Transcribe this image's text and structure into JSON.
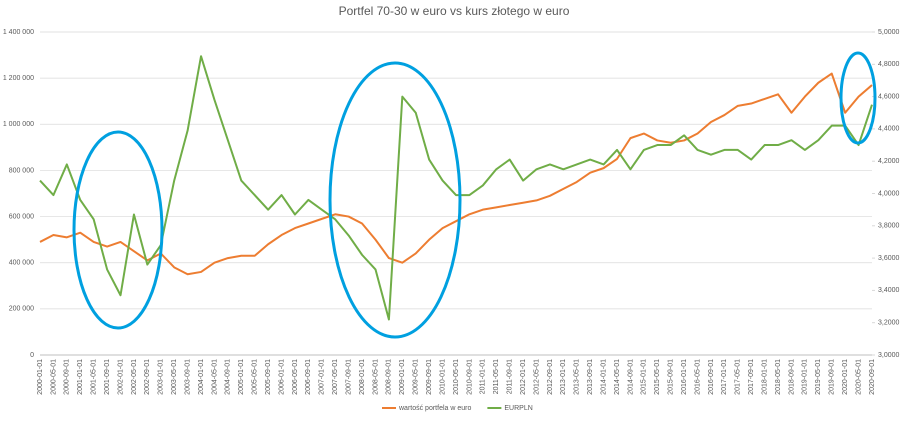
{
  "chart_data": {
    "type": "line",
    "title": "Portfel 70-30 w euro vs kurs złotego w euro",
    "categories": [
      "2000-01-01",
      "2000-05-01",
      "2000-09-01",
      "2001-01-01",
      "2001-05-01",
      "2001-09-01",
      "2002-01-01",
      "2002-05-01",
      "2002-09-01",
      "2003-01-01",
      "2003-05-01",
      "2003-09-01",
      "2004-01-01",
      "2004-05-01",
      "2004-09-01",
      "2005-01-01",
      "2005-05-01",
      "2005-09-01",
      "2006-01-01",
      "2006-05-01",
      "2006-09-01",
      "2007-01-01",
      "2007-05-01",
      "2007-09-01",
      "2008-01-01",
      "2008-05-01",
      "2008-09-01",
      "2009-01-01",
      "2009-05-01",
      "2009-09-01",
      "2010-01-01",
      "2010-05-01",
      "2010-09-01",
      "2011-01-01",
      "2011-05-01",
      "2011-09-01",
      "2012-01-01",
      "2012-05-01",
      "2012-09-01",
      "2013-01-01",
      "2013-05-01",
      "2013-09-01",
      "2014-01-01",
      "2014-05-01",
      "2014-09-01",
      "2015-01-01",
      "2015-05-01",
      "2015-09-01",
      "2016-01-01",
      "2016-05-01",
      "2016-09-01",
      "2017-01-01",
      "2017-05-01",
      "2017-09-01",
      "2018-01-01",
      "2018-05-01",
      "2018-09-01",
      "2019-01-01",
      "2019-05-01",
      "2019-09-01",
      "2020-01-01",
      "2020-05-01",
      "2020-09-01"
    ],
    "series": [
      {
        "name": "wartość portfela w euro",
        "color": "#ed7d31",
        "axis": "y",
        "values": [
          490000,
          520000,
          510000,
          530000,
          490000,
          470000,
          490000,
          450000,
          410000,
          440000,
          380000,
          350000,
          360000,
          400000,
          420000,
          430000,
          430000,
          480000,
          520000,
          550000,
          570000,
          590000,
          610000,
          600000,
          570000,
          500000,
          420000,
          400000,
          440000,
          500000,
          550000,
          580000,
          610000,
          630000,
          640000,
          650000,
          660000,
          670000,
          690000,
          720000,
          750000,
          790000,
          810000,
          850000,
          940000,
          960000,
          930000,
          920000,
          930000,
          960000,
          1010000,
          1040000,
          1080000,
          1090000,
          1110000,
          1130000,
          1050000,
          1120000,
          1180000,
          1220000,
          1050000,
          1120000,
          1170000
        ]
      },
      {
        "name": "EURPLN",
        "color": "#70ad47",
        "axis": "y2",
        "values": [
          4.08,
          3.99,
          4.18,
          3.96,
          3.84,
          3.53,
          3.37,
          3.87,
          3.56,
          3.68,
          4.08,
          4.39,
          4.85,
          4.58,
          4.33,
          4.08,
          3.99,
          3.9,
          3.99,
          3.87,
          3.96,
          3.9,
          3.84,
          3.74,
          3.62,
          3.53,
          3.22,
          4.6,
          4.5,
          4.21,
          4.08,
          3.99,
          3.99,
          4.05,
          4.15,
          4.21,
          4.08,
          4.15,
          4.18,
          4.15,
          4.18,
          4.21,
          4.18,
          4.27,
          4.15,
          4.27,
          4.3,
          4.3,
          4.36,
          4.27,
          4.24,
          4.27,
          4.27,
          4.21,
          4.3,
          4.3,
          4.33,
          4.27,
          4.33,
          4.42,
          4.42,
          4.3,
          4.55
        ]
      }
    ],
    "ylim": [
      0,
      1400000
    ],
    "yticks": [
      0,
      {
        "value": 200000,
        "label": "200 000"
      },
      {
        "value": 400000,
        "label": "400 000"
      },
      {
        "value": 600000,
        "label": "600 000"
      },
      {
        "value": 800000,
        "label": "800 000"
      },
      {
        "value": 1000000,
        "label": "1 000 000"
      },
      {
        "value": 1200000,
        "label": "1 200 000"
      },
      {
        "value": 1400000,
        "label": "1 400 000"
      }
    ],
    "y2lim": [
      3,
      5
    ],
    "y2ticks": [
      {
        "value": 3,
        "label": "3,0000"
      },
      {
        "value": 3.2,
        "label": "3,2000"
      },
      {
        "value": 3.4,
        "label": "3,4000"
      },
      {
        "value": 3.6,
        "label": "3,6000"
      },
      {
        "value": 3.8,
        "label": "3,8000"
      },
      {
        "value": 4,
        "label": "4,0000"
      },
      {
        "value": 4.2,
        "label": "4,2000"
      },
      {
        "value": 4.4,
        "label": "4,4000"
      },
      {
        "value": 4.6,
        "label": "4,6000"
      },
      {
        "value": 4.8,
        "label": "4,8000"
      },
      {
        "value": 5,
        "label": "5,0000"
      }
    ],
    "grid": true,
    "legend": "bottom"
  }
}
